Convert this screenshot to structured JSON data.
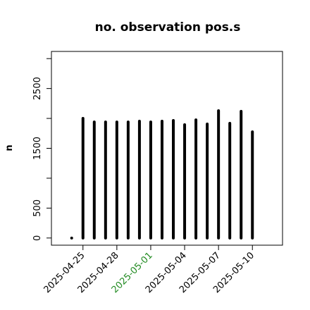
{
  "chart_data": {
    "type": "bar",
    "title": "no. observation pos.s",
    "ylabel": "n",
    "x": [
      "2025-04-24",
      "2025-04-25",
      "2025-04-26",
      "2025-04-27",
      "2025-04-28",
      "2025-04-29",
      "2025-04-30",
      "2025-05-01",
      "2025-05-02",
      "2025-05-03",
      "2025-05-04",
      "2025-05-05",
      "2025-05-06",
      "2025-05-07",
      "2025-05-08",
      "2025-05-09",
      "2025-05-10"
    ],
    "values": [
      0,
      2000,
      1941,
      1941,
      1941,
      1941,
      1953,
      1941,
      1953,
      1965,
      1894,
      1976,
      1906,
      2129,
      1918,
      2118,
      1776
    ],
    "color": "#000000",
    "xlim": [
      "2025-04-22T05:00",
      "2025-05-12T16:00"
    ],
    "xticks": [
      "2025-04-25",
      "2025-04-28",
      "2025-05-01",
      "2025-05-04",
      "2025-05-07",
      "2025-05-10"
    ],
    "xtick_colors": [
      "#000000",
      "#000000",
      "#228b22",
      "#000000",
      "#000000",
      "#000000"
    ],
    "ylim": [
      -120,
      3120
    ],
    "yticks": [
      0,
      500,
      {
        "value": 1000,
        "label": null
      },
      1500,
      {
        "value": 2000,
        "label": null
      },
      2500,
      {
        "value": 3000,
        "label": null
      }
    ]
  }
}
